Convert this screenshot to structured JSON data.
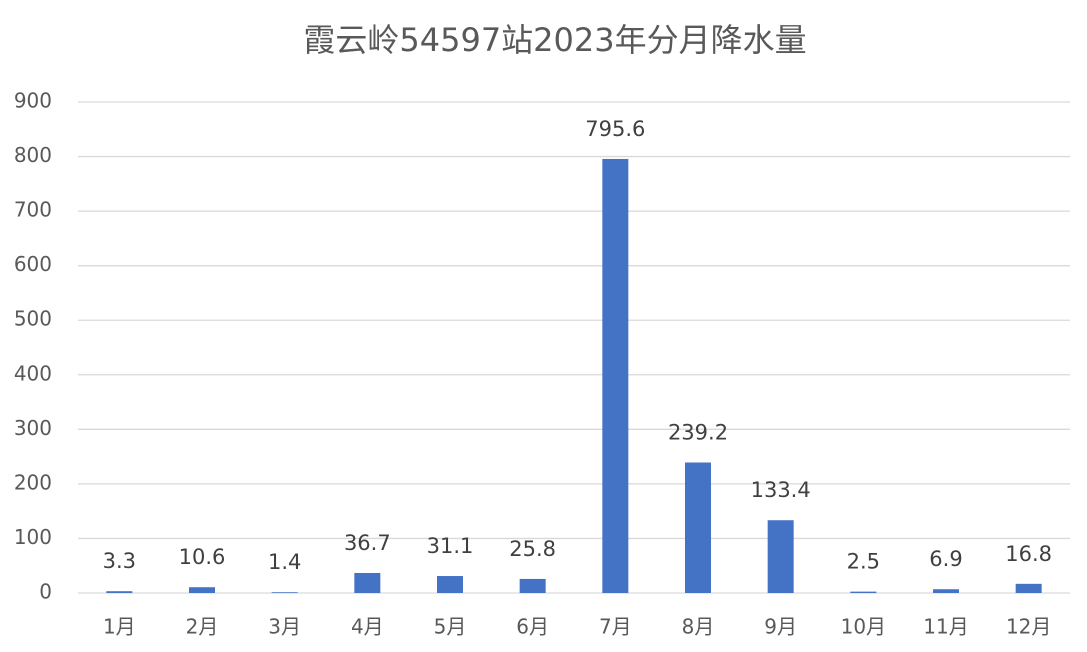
{
  "chart_data": {
    "type": "bar",
    "title": "霞云岭54597站2023年分月降水量",
    "categories": [
      "1月",
      "2月",
      "3月",
      "4月",
      "5月",
      "6月",
      "7月",
      "8月",
      "9月",
      "10月",
      "11月",
      "12月"
    ],
    "values": [
      3.3,
      10.6,
      1.4,
      36.7,
      31.1,
      25.8,
      795.6,
      239.2,
      133.4,
      2.5,
      6.9,
      16.8
    ],
    "color": "#4472c4",
    "ylim": [
      0,
      900
    ],
    "yticks": [
      0,
      100,
      200,
      300,
      400,
      500,
      600,
      700,
      800,
      900
    ],
    "grid": true
  }
}
